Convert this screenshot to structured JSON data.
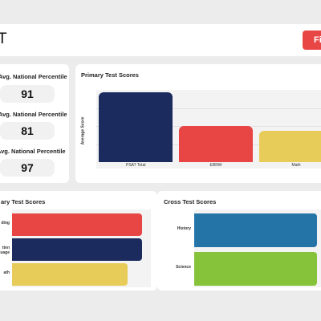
{
  "header": {
    "title": "T",
    "filter_label": "Fil"
  },
  "percentiles": {
    "items": [
      {
        "label": "Avg. National Percentile",
        "value": "91"
      },
      {
        "label": "Avg. National Percentile",
        "value": "81"
      },
      {
        "label": "Avg. National Percentile",
        "value": "97"
      }
    ]
  },
  "primary_scores": {
    "title": "Primary Test Scores"
  },
  "secondary_scores": {
    "title": "ary Test Scores"
  },
  "cross_scores": {
    "title": "Cross Test Scores"
  },
  "chart_data": [
    {
      "type": "bar",
      "title": "Primary Test Scores",
      "ylabel": "Average Score",
      "categories": [
        "PSAT Total",
        "EBRW",
        "Math"
      ],
      "values": [
        1000,
        520,
        450
      ],
      "ylim": [
        0,
        1000
      ],
      "colors": [
        "#1c2b5e",
        "#e84545",
        "#e8cc5a"
      ]
    },
    {
      "type": "bar",
      "orientation": "horizontal",
      "title": "ary Test Scores",
      "categories": [
        "ding",
        "tten\nuage",
        "ath"
      ],
      "values": [
        100,
        100,
        89
      ],
      "colors": [
        "#e84545",
        "#1c2b5e",
        "#e8cc5a"
      ]
    },
    {
      "type": "bar",
      "orientation": "horizontal",
      "title": "Cross Test Scores",
      "categories": [
        "History",
        "Science"
      ],
      "values": [
        100,
        100
      ],
      "colors": [
        "#2474a8",
        "#86c23a"
      ]
    }
  ]
}
